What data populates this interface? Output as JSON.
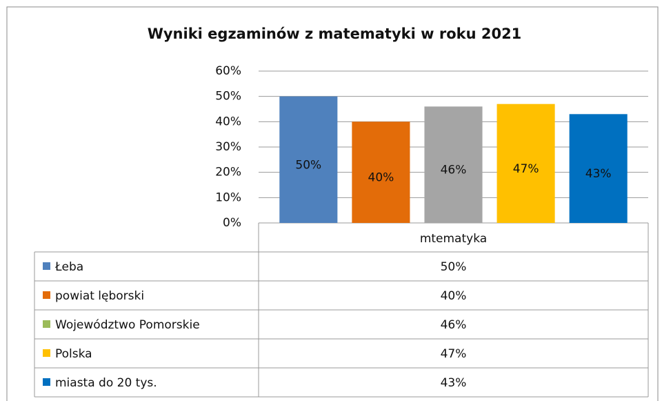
{
  "chart_data": {
    "type": "bar",
    "title": "Wyniki egzaminów z  matematyki w roku 2021",
    "categories": [
      "mtematyka"
    ],
    "series": [
      {
        "name": "Łeba",
        "color": "#4f81bd",
        "key_color": "#4f81bd",
        "values": [
          50
        ],
        "value_labels": [
          "50%"
        ]
      },
      {
        "name": "powiat lęborski",
        "color": "#e36c09",
        "key_color": "#e36c09",
        "values": [
          40
        ],
        "value_labels": [
          "40%"
        ]
      },
      {
        "name": "Województwo  Pomorskie",
        "color": "#a5a5a5",
        "key_color": "#9bbb59",
        "values": [
          46
        ],
        "value_labels": [
          "46%"
        ]
      },
      {
        "name": "Polska",
        "color": "#ffc000",
        "key_color": "#ffc000",
        "values": [
          47
        ],
        "value_labels": [
          "47%"
        ]
      },
      {
        "name": "miasta do 20  tys.",
        "color": "#0070c0",
        "key_color": "#0070c0",
        "values": [
          43
        ],
        "value_labels": [
          "43%"
        ]
      }
    ],
    "ylim": [
      0,
      60
    ],
    "yticks": [
      {
        "value": 0,
        "label": "0%"
      },
      {
        "value": 10,
        "label": "10%"
      },
      {
        "value": 20,
        "label": "20%"
      },
      {
        "value": 30,
        "label": "30%"
      },
      {
        "value": 40,
        "label": "40%"
      },
      {
        "value": 50,
        "label": "50%"
      },
      {
        "value": 60,
        "label": "60%"
      }
    ],
    "grid": true,
    "data_table": true
  }
}
